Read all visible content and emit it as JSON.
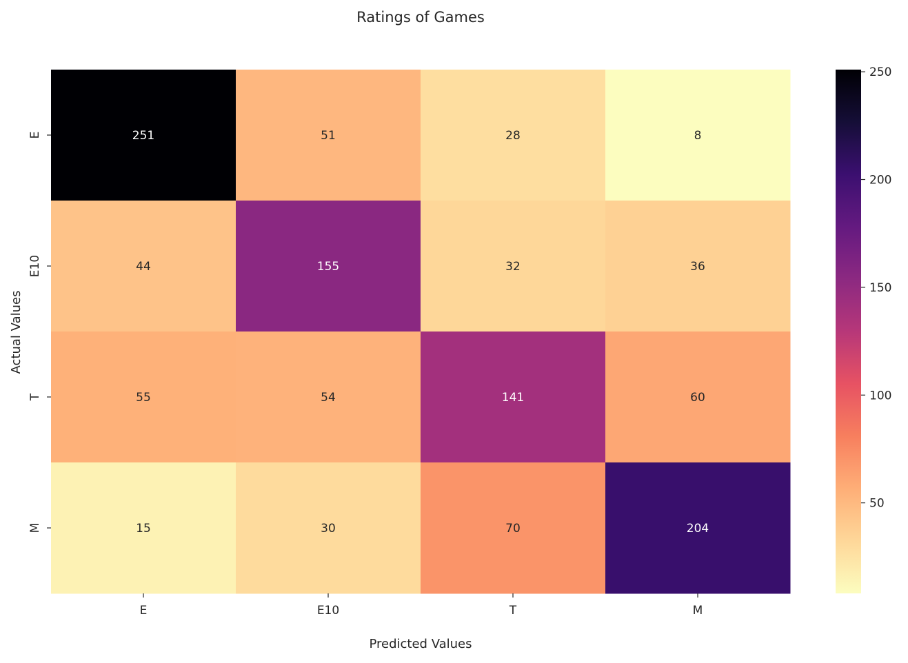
{
  "chart_data": {
    "type": "heatmap",
    "title": "Ratings of Games",
    "xlabel": "Predicted Values",
    "ylabel": "Actual Values",
    "x_categories": [
      "E",
      "E10",
      "T",
      "M"
    ],
    "y_categories": [
      "E",
      "E10",
      "T",
      "M"
    ],
    "values": [
      [
        251,
        51,
        28,
        8
      ],
      [
        44,
        155,
        32,
        36
      ],
      [
        55,
        54,
        141,
        60
      ],
      [
        15,
        30,
        70,
        204
      ]
    ],
    "colormap": "magma_r",
    "vmin": 8,
    "vmax": 251,
    "colorbar_ticks": [
      50,
      100,
      150,
      200,
      250
    ],
    "annotation_dark_text_color": "#262626",
    "annotation_light_text_color": "#ffffff"
  }
}
